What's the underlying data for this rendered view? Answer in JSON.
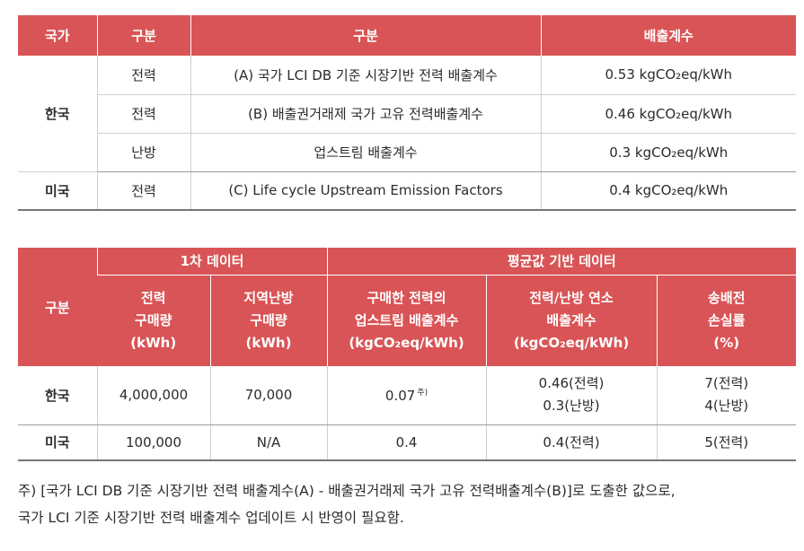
{
  "table1": {
    "headers": [
      "국가",
      "구분",
      "구분",
      "배출계수"
    ],
    "rows": [
      {
        "country": "한국",
        "type": "전력",
        "desc": "(A) 국가 LCI DB 기준 시장기반 전력 배출계수",
        "factor": "0.53 kgCO₂eq/kWh"
      },
      {
        "type": "전력",
        "desc": "(B) 배출권거래제 국가 고유 전력배출계수",
        "factor": "0.46 kgCO₂eq/kWh"
      },
      {
        "type": "난방",
        "desc": "업스트림 배출계수",
        "factor": "0.3 kgCO₂eq/kWh"
      },
      {
        "country": "미국",
        "type": "전력",
        "desc": "(C) Life cycle Upstream Emission Factors",
        "factor": "0.4 kgCO₂eq/kWh"
      }
    ]
  },
  "table2": {
    "header_col": "구분",
    "group1": "1차 데이터",
    "group2": "평균값 기반 데이터",
    "sub": [
      [
        "전력",
        "구매량",
        "(kWh)"
      ],
      [
        "지역난방",
        "구매량",
        "(kWh)"
      ],
      [
        "구매한 전력의",
        "업스트림 배출계수",
        "(kgCO₂eq/kWh)"
      ],
      [
        "전력/난방 연소",
        "배출계수",
        "(kgCO₂eq/kWh)"
      ],
      [
        "송배전",
        "손실률",
        "(%)"
      ]
    ],
    "rows": [
      {
        "country": "한국",
        "elec": "4,000,000",
        "heat": "70,000",
        "upstream": "0.07",
        "upstream_note": "주)",
        "combust": [
          "0.46(전력)",
          "0.3(난방)"
        ],
        "loss": [
          "7(전력)",
          "4(난방)"
        ]
      },
      {
        "country": "미국",
        "elec": "100,000",
        "heat": "N/A",
        "upstream": "0.4",
        "combust": [
          "0.4(전력)"
        ],
        "loss": [
          "5(전력)"
        ]
      }
    ]
  },
  "note": {
    "line1": "주) [국가 LCI DB 기준 시장기반 전력 배출계수(A) - 배출권거래제 국가 고유 전력배출계수(B)]로 도출한 값으로,",
    "line2": "국가 LCI 기준 시장기반 전력 배출계수 업데이트 시 반영이 필요함."
  }
}
